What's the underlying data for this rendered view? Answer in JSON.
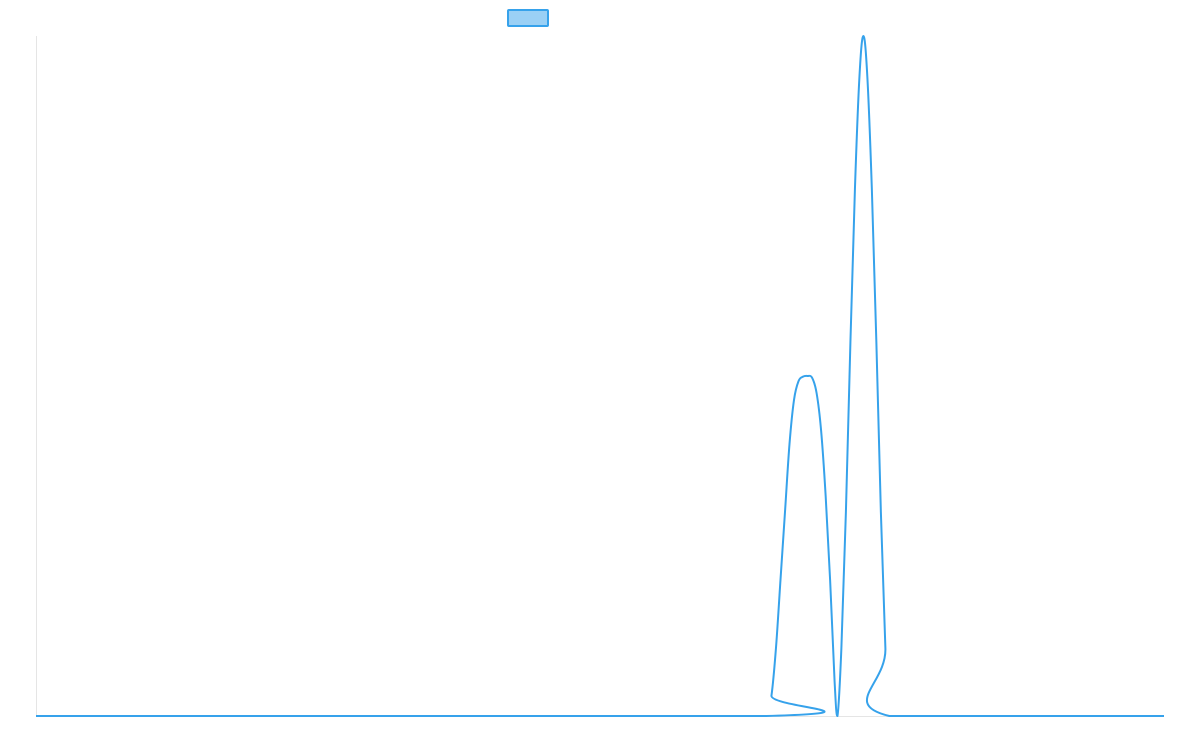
{
  "chart_data": {
    "type": "line",
    "title": "",
    "xlabel": "",
    "ylabel": "",
    "grid": false,
    "legend": {
      "position": "top-center",
      "swatch_fill": "#9ad0f5",
      "swatch_stroke": "#36a2eb"
    },
    "series": [
      {
        "color": "#36a2eb",
        "points": [
          [
            0,
            0
          ],
          [
            0.6475,
            0
          ],
          [
            0.652,
            0.06
          ],
          [
            0.656,
            0.2
          ],
          [
            0.66,
            0.4
          ],
          [
            0.664,
            0.6
          ],
          [
            0.668,
            0.8
          ],
          [
            0.672,
            0.93
          ],
          [
            0.676,
            0.985
          ],
          [
            0.68,
            0.998
          ],
          [
            0.684,
            1.0
          ],
          [
            0.688,
            0.995
          ],
          [
            0.692,
            0.95
          ],
          [
            0.696,
            0.84
          ],
          [
            0.7,
            0.65
          ],
          [
            0.704,
            0.4
          ],
          [
            0.708,
            0.1
          ],
          [
            0.7105,
            0.0
          ],
          [
            0.714,
            0.2
          ],
          [
            0.718,
            0.6
          ],
          [
            0.722,
            1.1
          ],
          [
            0.726,
            1.55
          ],
          [
            0.73,
            1.88
          ],
          [
            0.7335,
            2.0
          ],
          [
            0.737,
            1.88
          ],
          [
            0.741,
            1.55
          ],
          [
            0.745,
            1.1
          ],
          [
            0.749,
            0.6
          ],
          [
            0.753,
            0.2
          ],
          [
            0.7565,
            0
          ],
          [
            1,
            0
          ]
        ]
      }
    ],
    "xlim": [
      0,
      1
    ],
    "ylim": [
      0,
      2
    ]
  }
}
